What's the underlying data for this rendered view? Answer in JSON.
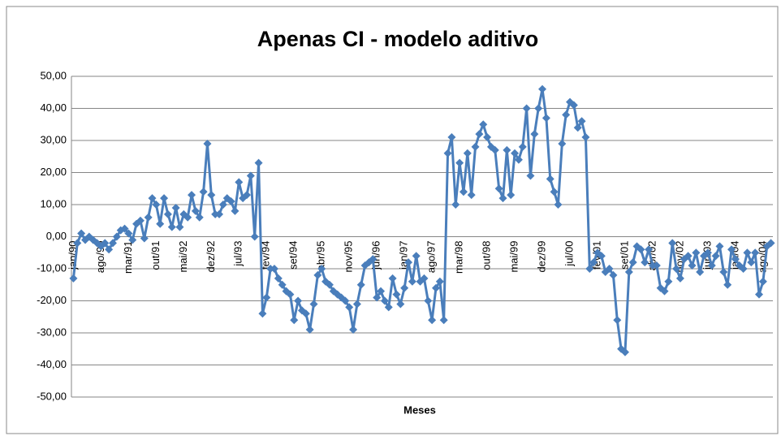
{
  "chart_data": {
    "type": "line",
    "title": "Apenas CI - modelo aditivo",
    "x_label": "Meses",
    "categories": [
      "jan/90",
      null,
      null,
      null,
      null,
      null,
      null,
      "ago/90",
      null,
      null,
      null,
      null,
      null,
      null,
      "mar/91",
      null,
      null,
      null,
      null,
      null,
      null,
      "out/91",
      null,
      null,
      null,
      null,
      null,
      null,
      "mai/92",
      null,
      null,
      null,
      null,
      null,
      null,
      "dez/92",
      null,
      null,
      null,
      null,
      null,
      null,
      "jul/93",
      null,
      null,
      null,
      null,
      null,
      null,
      "fev/94",
      null,
      null,
      null,
      null,
      null,
      null,
      "set/94",
      null,
      null,
      null,
      null,
      null,
      null,
      "abr/95",
      null,
      null,
      null,
      null,
      null,
      null,
      "nov/95",
      null,
      null,
      null,
      null,
      null,
      null,
      "jun/96",
      null,
      null,
      null,
      null,
      null,
      null,
      "jan/97",
      null,
      null,
      null,
      null,
      null,
      null,
      "ago/97",
      null,
      null,
      null,
      null,
      null,
      null,
      "mar/98",
      null,
      null,
      null,
      null,
      null,
      null,
      "out/98",
      null,
      null,
      null,
      null,
      null,
      null,
      "mai/99",
      null,
      null,
      null,
      null,
      null,
      null,
      "dez/99",
      null,
      null,
      null,
      null,
      null,
      null,
      "jul/00",
      null,
      null,
      null,
      null,
      null,
      null,
      "fev/01",
      null,
      null,
      null,
      null,
      null,
      null,
      "set/01",
      null,
      null,
      null,
      null,
      null,
      null,
      "abr/02",
      null,
      null,
      null,
      null,
      null,
      null,
      "nov/02",
      null,
      null,
      null,
      null,
      null,
      null,
      "jun/03",
      null,
      null,
      null,
      null,
      null,
      null,
      "jan/04",
      null,
      null,
      null,
      null,
      null,
      null,
      "ago/04",
      null,
      null
    ],
    "values": [
      -13,
      -2,
      1,
      -1,
      0,
      -1,
      -2,
      -3,
      -2,
      -4,
      -2,
      0,
      2,
      2.5,
      1,
      -1,
      4,
      5,
      -0.5,
      6,
      12,
      10,
      4,
      12,
      7,
      3,
      9,
      3,
      7,
      6,
      13,
      8,
      6,
      14,
      29,
      13,
      7,
      7,
      10,
      12,
      11,
      8,
      17,
      12,
      13,
      19,
      0,
      23,
      -24,
      -19,
      -10,
      -10,
      -13,
      -15,
      -17,
      -18,
      -26,
      -20,
      -23,
      -24,
      -29,
      -21,
      -12,
      -10,
      -14,
      -15,
      -17,
      -18,
      -19,
      -20,
      -22,
      -29,
      -21,
      -15,
      -9,
      -8,
      -7,
      -19,
      -17,
      -20,
      -22,
      -13,
      -18,
      -21,
      -16,
      -8,
      -14,
      -6,
      -14,
      -13,
      -20,
      -26,
      -16,
      -14,
      -26,
      26,
      31,
      10,
      23,
      14,
      26,
      13,
      28,
      32,
      35,
      31,
      28,
      27,
      15,
      12,
      27,
      13,
      26,
      24,
      28,
      40,
      19,
      32,
      40,
      46,
      37,
      18,
      14,
      10,
      29,
      38,
      42,
      41,
      34,
      36,
      31,
      -10,
      -8,
      -5,
      -6,
      -11,
      -10,
      -12,
      -26,
      -35,
      -36,
      -11,
      -8,
      -3,
      -4,
      -8,
      -4,
      -9,
      -9,
      -16,
      -17,
      -14,
      -2,
      -10,
      -13,
      -7,
      -6,
      -9,
      -5,
      -11,
      -6,
      -5,
      -9,
      -6,
      -3,
      -11,
      -15,
      -4,
      -7,
      -9,
      -10,
      -5,
      -8,
      -5,
      -18,
      -14,
      -3,
      -2
    ],
    "color": "#4a7ebb",
    "ylim": [
      -50,
      50
    ],
    "yticks": [
      {
        "value": -50,
        "label": "-50,00"
      },
      {
        "value": -40,
        "label": "-40,00"
      },
      {
        "value": -30,
        "label": "-30,00"
      },
      {
        "value": -20,
        "label": "-20,00"
      },
      {
        "value": -10,
        "label": "-10,00"
      },
      {
        "value": 0,
        "label": "0,00"
      },
      {
        "value": 10,
        "label": "10,00"
      },
      {
        "value": 20,
        "label": "20,00"
      },
      {
        "value": 30,
        "label": "30,00"
      },
      {
        "value": 40,
        "label": "40,00"
      },
      {
        "value": 50,
        "label": "50,00"
      }
    ],
    "grid": true
  }
}
